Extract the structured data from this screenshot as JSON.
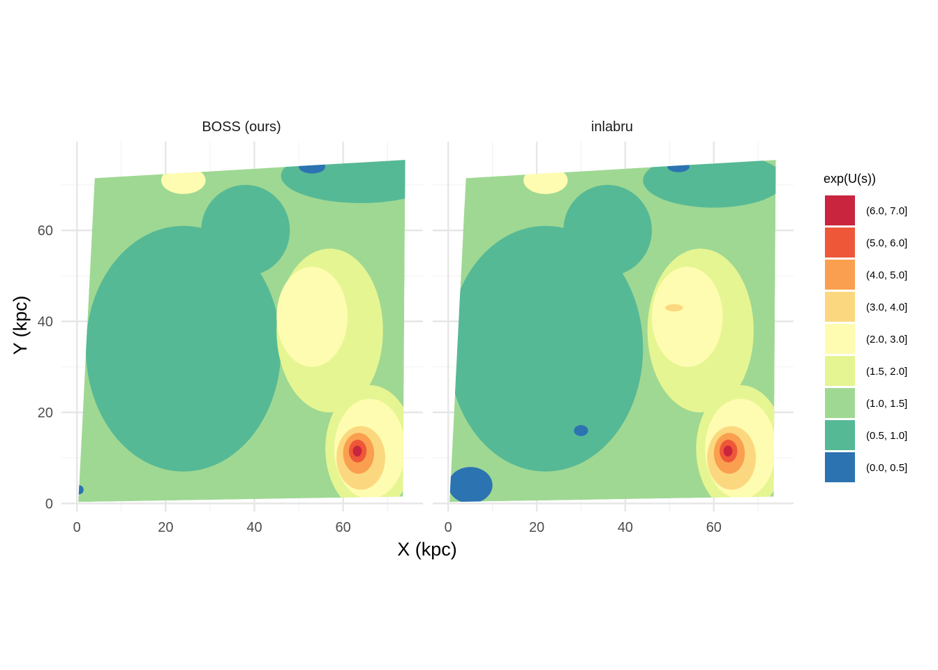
{
  "chart_data": {
    "type": "heatmap",
    "subtype": "filled-contour",
    "facets": [
      {
        "title": "BOSS (ours)",
        "blobs": [
          {
            "band": 2,
            "x": 10,
            "y": 62,
            "rx": 6,
            "ry": 5
          },
          {
            "band": 4,
            "x": 24,
            "y": 71,
            "rx": 5,
            "ry": 3
          },
          {
            "band": 1,
            "x": 24,
            "y": 34,
            "rx": 22,
            "ry": 27
          },
          {
            "band": 1,
            "x": 38,
            "y": 60,
            "rx": 10,
            "ry": 10
          },
          {
            "band": 1,
            "x": 64,
            "y": 72,
            "rx": 18,
            "ry": 6
          },
          {
            "band": 0,
            "x": 53,
            "y": 74,
            "rx": 3,
            "ry": 1.5
          },
          {
            "band": 0,
            "x": 0.5,
            "y": 3,
            "rx": 1,
            "ry": 1
          },
          {
            "band": 3,
            "x": 57,
            "y": 38,
            "rx": 12,
            "ry": 18
          },
          {
            "band": 4,
            "x": 53,
            "y": 41,
            "rx": 8,
            "ry": 11
          },
          {
            "band": 3,
            "x": 66,
            "y": 12,
            "rx": 10,
            "ry": 14
          },
          {
            "band": 4,
            "x": 66,
            "y": 12,
            "rx": 8,
            "ry": 11
          },
          {
            "band": 5,
            "x": 64,
            "y": 10,
            "rx": 5.5,
            "ry": 7
          },
          {
            "band": 6,
            "x": 63.5,
            "y": 11,
            "rx": 3.5,
            "ry": 4.5
          },
          {
            "band": 7,
            "x": 63.3,
            "y": 11.5,
            "rx": 2,
            "ry": 2.5
          },
          {
            "band": 8,
            "x": 63.2,
            "y": 11.5,
            "rx": 1,
            "ry": 1.2
          }
        ]
      },
      {
        "title": "inlabru",
        "blobs": [
          {
            "band": 2,
            "x": 8,
            "y": 62,
            "rx": 7,
            "ry": 5
          },
          {
            "band": 4,
            "x": 22,
            "y": 71,
            "rx": 5,
            "ry": 3
          },
          {
            "band": 1,
            "x": 22,
            "y": 34,
            "rx": 22,
            "ry": 27
          },
          {
            "band": 1,
            "x": 36,
            "y": 60,
            "rx": 10,
            "ry": 10
          },
          {
            "band": 1,
            "x": 60,
            "y": 71,
            "rx": 16,
            "ry": 6
          },
          {
            "band": 0,
            "x": 52,
            "y": 74,
            "rx": 2.5,
            "ry": 1.2
          },
          {
            "band": 0,
            "x": 5,
            "y": 4,
            "rx": 5,
            "ry": 4
          },
          {
            "band": 0,
            "x": 30,
            "y": 16,
            "rx": 1.6,
            "ry": 1.2
          },
          {
            "band": 3,
            "x": 57,
            "y": 38,
            "rx": 12,
            "ry": 18
          },
          {
            "band": 4,
            "x": 54,
            "y": 41,
            "rx": 8,
            "ry": 11
          },
          {
            "band": 5,
            "x": 51,
            "y": 43,
            "rx": 2,
            "ry": 0.8
          },
          {
            "band": 3,
            "x": 66,
            "y": 12,
            "rx": 10,
            "ry": 14
          },
          {
            "band": 4,
            "x": 66,
            "y": 12,
            "rx": 8,
            "ry": 11
          },
          {
            "band": 5,
            "x": 64,
            "y": 10,
            "rx": 5.5,
            "ry": 7
          },
          {
            "band": 6,
            "x": 63.5,
            "y": 11,
            "rx": 3.5,
            "ry": 4.5
          },
          {
            "band": 7,
            "x": 63.3,
            "y": 11.5,
            "rx": 2,
            "ry": 2.5
          },
          {
            "band": 8,
            "x": 63.2,
            "y": 11.5,
            "rx": 1,
            "ry": 1.2
          }
        ]
      }
    ],
    "background_band": 2,
    "domain_polygon": [
      [
        0.3,
        0.3
      ],
      [
        73.5,
        1.5
      ],
      [
        74,
        75.5
      ],
      [
        4,
        71.5
      ]
    ],
    "xlabel": "X (kpc)",
    "ylabel": "Y (kpc)",
    "xlim": [
      -3.5,
      78
    ],
    "ylim": [
      -1.8,
      79.5
    ],
    "x_ticks": [
      0,
      20,
      40,
      60
    ],
    "y_ticks": [
      0,
      20,
      40,
      60
    ],
    "legend": {
      "title": "exp(U(s))",
      "position": "right",
      "bins": [
        {
          "label": "(6.0, 7.0]",
          "color": "#C9253F"
        },
        {
          "label": "(5.0, 6.0]",
          "color": "#EE5838"
        },
        {
          "label": "(4.0, 5.0]",
          "color": "#FA9F50"
        },
        {
          "label": "(3.0, 4.0]",
          "color": "#FBD87F"
        },
        {
          "label": "(2.0, 3.0]",
          "color": "#FEFCB0"
        },
        {
          "label": "(1.5, 2.0]",
          "color": "#E5F592"
        },
        {
          "label": "(1.0, 1.5]",
          "color": "#9FD893"
        },
        {
          "label": "(0.5, 1.0]",
          "color": "#56B995"
        },
        {
          "label": "(0.0, 0.5]",
          "color": "#2C73B1"
        }
      ]
    },
    "grid": true
  }
}
